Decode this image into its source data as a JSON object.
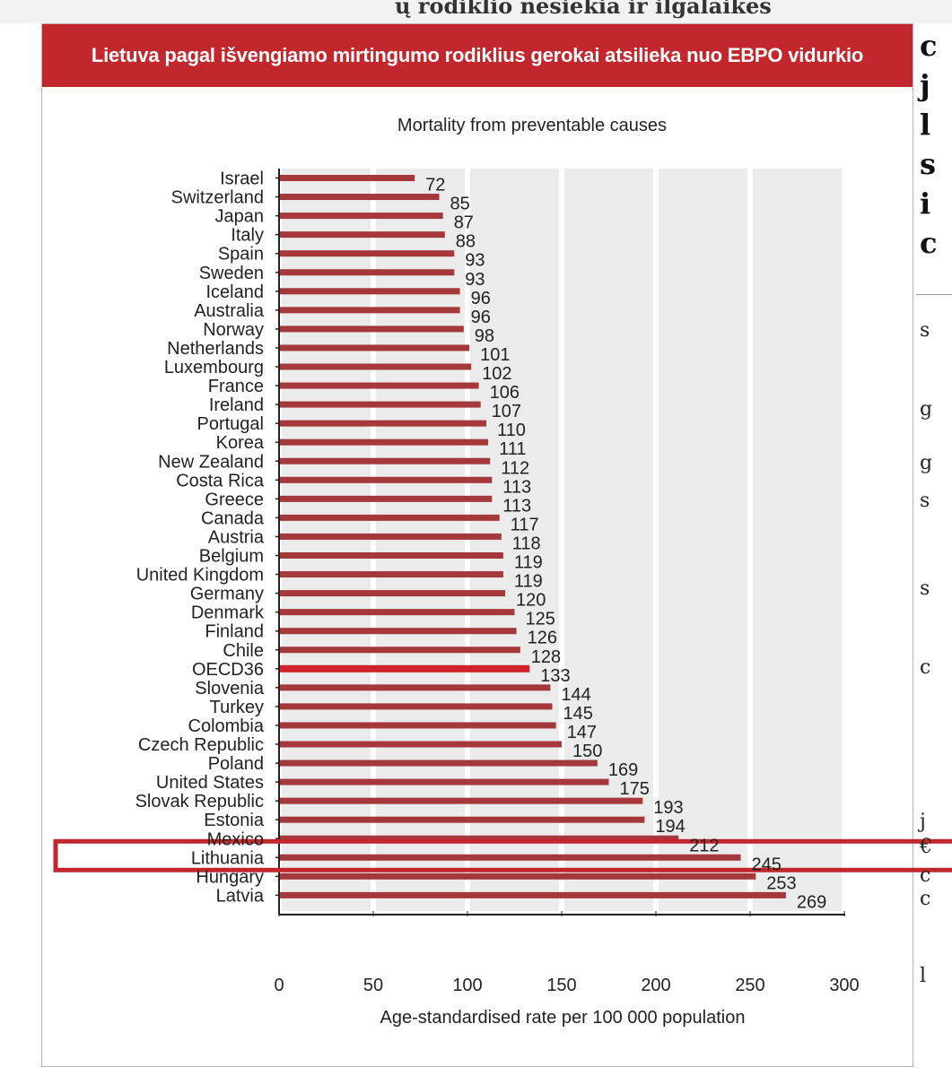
{
  "page": {
    "top_fragment": "ų rodiklio nesiekia ir ilgalaikės",
    "banner_title": "Lietuva pagal  išvengiamo mirtingumo rodiklius gerokai atsilieka nuo EBPO vidurkio"
  },
  "side_article": {
    "head_letters": [
      "c",
      "j",
      "l",
      "s",
      "i",
      "c"
    ],
    "body_letters": [
      "s",
      "g",
      "g",
      "s",
      "s",
      "c",
      "j",
      "€",
      "c",
      "c",
      "l"
    ]
  },
  "chart_data": {
    "type": "bar",
    "orientation": "horizontal",
    "title": "Mortality from preventable causes",
    "xlabel": "Age-standardised rate per 100 000 population",
    "ylabel": "",
    "xlim": [
      0,
      300
    ],
    "xticks": [
      0,
      50,
      100,
      150,
      200,
      250,
      300
    ],
    "grid": true,
    "categories": [
      "Israel",
      "Switzerland",
      "Japan",
      "Italy",
      "Spain",
      "Sweden",
      "Iceland",
      "Australia",
      "Norway",
      "Netherlands",
      "Luxembourg",
      "France",
      "Ireland",
      "Portugal",
      "Korea",
      "New Zealand",
      "Costa Rica",
      "Greece",
      "Canada",
      "Austria",
      "Belgium",
      "United Kingdom",
      "Germany",
      "Denmark",
      "Finland",
      "Chile",
      "OECD36",
      "Slovenia",
      "Turkey",
      "Colombia",
      "Czech Republic",
      "Poland",
      "United States",
      "Slovak Republic",
      "Estonia",
      "Mexico",
      "Lithuania",
      "Hungary",
      "Latvia"
    ],
    "values": [
      72,
      85,
      87,
      88,
      93,
      93,
      96,
      96,
      98,
      101,
      102,
      106,
      107,
      110,
      111,
      112,
      113,
      113,
      117,
      118,
      119,
      119,
      120,
      125,
      126,
      128,
      133,
      144,
      145,
      147,
      150,
      169,
      175,
      193,
      194,
      212,
      245,
      253,
      269
    ],
    "highlight_bar": "OECD36",
    "highlight_box": "Lithuania",
    "colors": {
      "bar": "#a5383b",
      "bar_highlight": "#d0232b",
      "banner": "#c1272d",
      "box": "#c1272d",
      "grid_band": "#ebebeb"
    }
  }
}
